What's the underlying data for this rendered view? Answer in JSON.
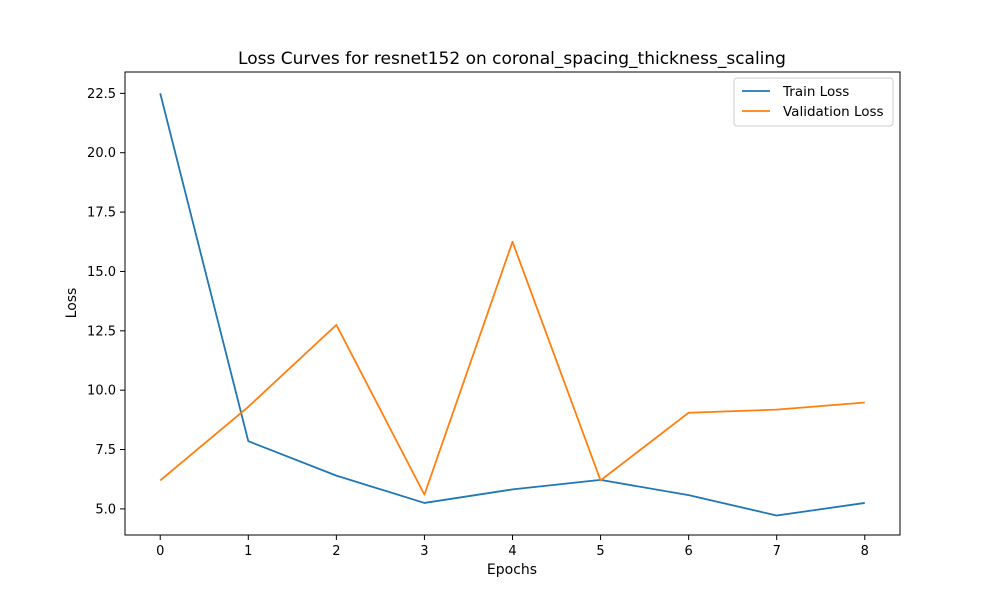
{
  "chart_data": {
    "type": "line",
    "title": "Loss Curves for resnet152 on coronal_spacing_thickness_scaling",
    "xlabel": "Epochs",
    "ylabel": "Loss",
    "x": [
      0,
      1,
      2,
      3,
      4,
      5,
      6,
      7,
      8
    ],
    "xlim": [
      -0.4,
      8.4
    ],
    "ylim": [
      3.9,
      23.4
    ],
    "xticks": [
      0,
      1,
      2,
      3,
      4,
      5,
      6,
      7,
      8
    ],
    "yticks": [
      5.0,
      7.5,
      10.0,
      12.5,
      15.0,
      17.5,
      20.0,
      22.5
    ],
    "ytick_labels": [
      "5.0",
      "7.5",
      "10.0",
      "12.5",
      "15.0",
      "17.5",
      "20.0",
      "22.5"
    ],
    "grid": false,
    "legend_position": "top-right",
    "series": [
      {
        "name": "Train Loss",
        "color": "#1f77b4",
        "values": [
          22.5,
          7.85,
          6.4,
          5.25,
          5.82,
          6.22,
          5.58,
          4.72,
          5.25
        ]
      },
      {
        "name": "Validation Loss",
        "color": "#ff7f0e",
        "values": [
          6.2,
          9.3,
          12.75,
          5.6,
          16.25,
          6.2,
          9.05,
          9.18,
          9.48
        ]
      }
    ]
  }
}
